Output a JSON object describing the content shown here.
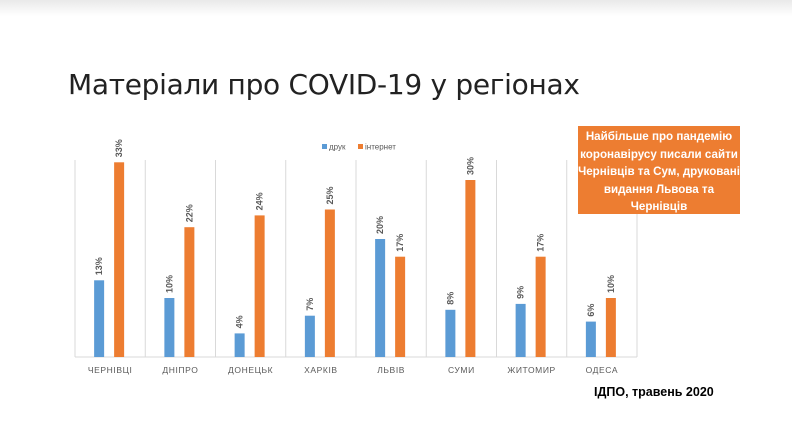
{
  "slide": {
    "title": "Матеріали про COVID-19 у регіонах",
    "callout": "Найбільше про пандемію коронавірусу писали сайти Чернівців та Сум, друковані видання Львова та Чернівців",
    "source": "ІДПО, травень 2020"
  },
  "colors": {
    "print": "#5b9bd5",
    "internet": "#ed7d31",
    "callout": "#ed7d31"
  },
  "chart_data": {
    "type": "bar",
    "title": "",
    "xlabel": "",
    "ylabel": "",
    "ylim": [
      0,
      35
    ],
    "grid": false,
    "legend_position": "top",
    "categories": [
      "ЧЕРНІВЦІ",
      "ДНІПРО",
      "ДОНЕЦЬК",
      "ХАРКІВ",
      "ЛЬВІВ",
      "СУМИ",
      "ЖИТОМИР",
      "ОДЕСА"
    ],
    "series": [
      {
        "name": "друк",
        "values": [
          13,
          10,
          4,
          7,
          20,
          8,
          9,
          6
        ],
        "labels": [
          "13%",
          "10%",
          "4%",
          "7%",
          "20%",
          "8%",
          "9%",
          "6%"
        ]
      },
      {
        "name": "інтернет",
        "values": [
          33,
          22,
          24,
          25,
          17,
          30,
          17,
          10
        ],
        "labels": [
          "33%",
          "22%",
          "24%",
          "25%",
          "17%",
          "30%",
          "17%",
          "10%"
        ]
      }
    ]
  }
}
